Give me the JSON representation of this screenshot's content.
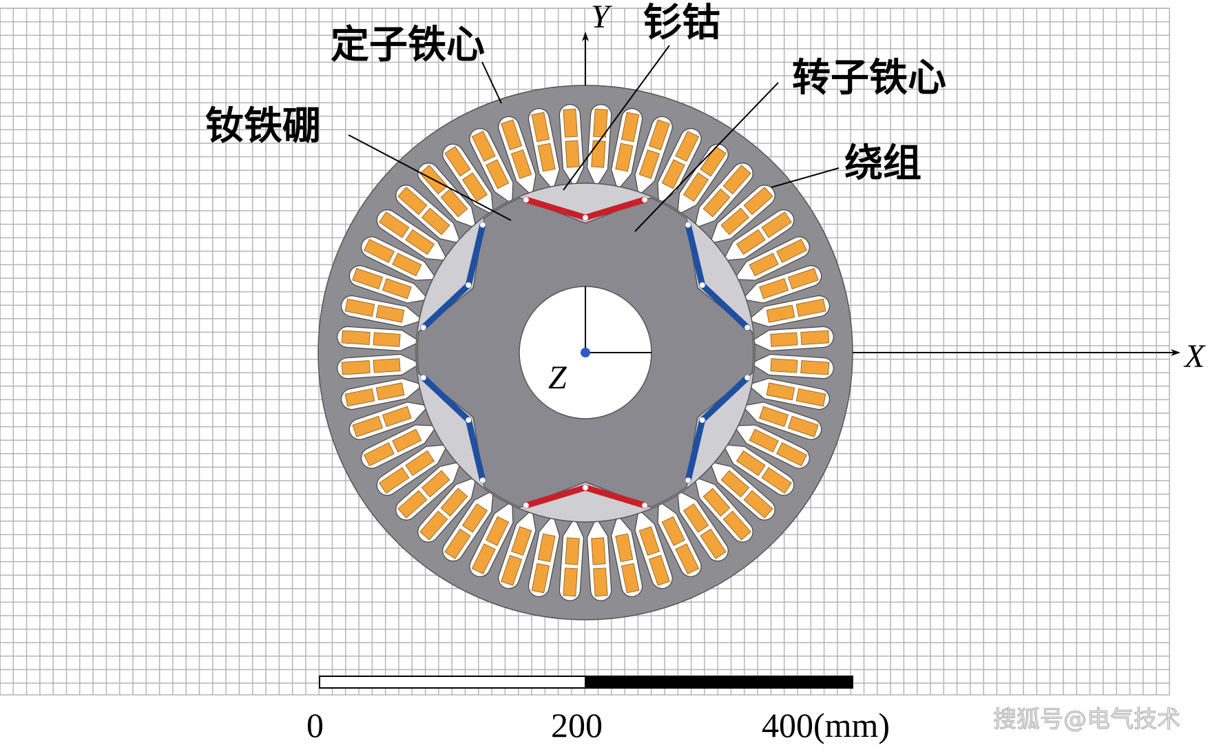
{
  "labels": {
    "stator_core": "定子铁心",
    "samarium_cobalt": "钐钴",
    "rotor_core": "转子铁心",
    "ndfeb": "钕铁硼",
    "winding": "绕组"
  },
  "axes": {
    "x": "X",
    "y": "Y",
    "z": "Z"
  },
  "scale_bar": {
    "ticks": [
      "0",
      "200",
      "400(mm)"
    ]
  },
  "watermark": "搜狐号@电气技术",
  "colors": {
    "stator": "#8e8d92",
    "rotor": "#8a8990",
    "winding": "#f2a33a",
    "samarium_cobalt_magnet": "#c8202a",
    "ndfeb_magnet": "#1f4fa0",
    "grid": "#b4b4b4"
  },
  "motor": {
    "stator_slots": 48,
    "rotor_poles": 6
  }
}
